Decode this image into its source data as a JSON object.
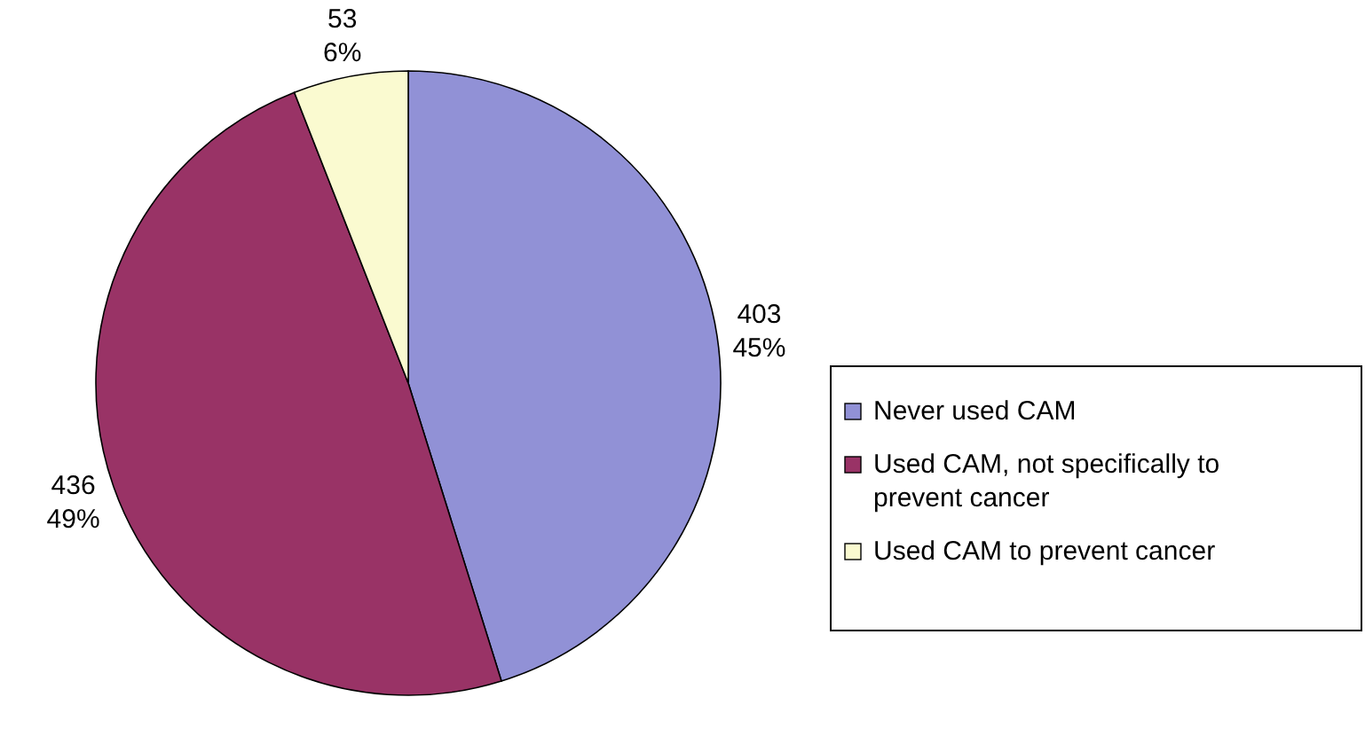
{
  "chart_data": {
    "type": "pie",
    "categories": [
      "Never used CAM",
      "Used CAM, not specifically to prevent cancer",
      "Used CAM to prevent cancer"
    ],
    "values": [
      403,
      436,
      53
    ],
    "colors": [
      "#9191d6",
      "#993366",
      "#fafad0"
    ],
    "value_labels": [
      "403\n45%",
      "436\n49%",
      "53\n6%"
    ],
    "legend": "right"
  }
}
